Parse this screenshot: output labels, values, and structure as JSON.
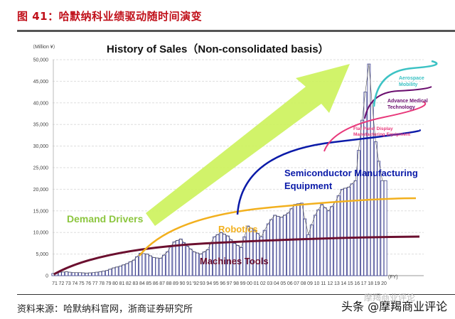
{
  "figure": {
    "title": "图 41：哈默纳科业绩驱动随时间演变",
    "source": "资料来源：哈默纳科官网，浙商证券研究所",
    "watermark": "头条 @摩羯商业评论",
    "watermark_faint": "摩羯商业评论"
  },
  "colors": {
    "title_red": "#c0101a",
    "bars": "#3b3f8f",
    "bar_fill": "#ffffff",
    "arrow": "#ccf25a",
    "demand_drivers": "#8cc63f",
    "machine_tools": "#6b0f2f",
    "robotics": "#f2b01e",
    "semiconductor": "#0a1aa8",
    "flat_panel": "#e8387a",
    "medical": "#6a0d6e",
    "aerospace": "#3cc2c4",
    "grid": "#dddddd"
  },
  "chart_data": {
    "type": "bar",
    "title": "History of Sales（Non-consolidated basis）",
    "unit_label": "（Million ¥）",
    "xlabel": "(FY)",
    "ylabel": "",
    "ylim": [
      0,
      50000
    ],
    "yticks": [
      0,
      5000,
      10000,
      15000,
      20000,
      25000,
      30000,
      35000,
      40000,
      45000,
      50000
    ],
    "ytick_labels": [
      "0",
      "5,000",
      "10,000",
      "15,000",
      "20,000",
      "25,000",
      "30,000",
      "35,000",
      "40,000",
      "45,000",
      "50,000"
    ],
    "grid": true,
    "categories": [
      "71",
      "72",
      "73",
      "74",
      "75",
      "76",
      "77",
      "78",
      "79",
      "80",
      "81",
      "82",
      "83",
      "84",
      "85",
      "86",
      "87",
      "88",
      "89",
      "90",
      "91",
      "'92",
      "93",
      "94",
      "95",
      "96",
      "97",
      "98",
      "99",
      "00",
      "01",
      "02",
      "03",
      "04",
      "05",
      "06",
      "07",
      "08",
      "09",
      "10",
      "11",
      "12",
      "13",
      "14",
      "15",
      "16",
      "17",
      "18",
      "19",
      "20"
    ],
    "values": [
      500,
      800,
      900,
      700,
      700,
      600,
      700,
      900,
      1200,
      1800,
      2200,
      2800,
      3600,
      5200,
      5000,
      4200,
      4000,
      5500,
      7800,
      8500,
      6800,
      5500,
      5000,
      6000,
      9000,
      10000,
      9200,
      7500,
      6500,
      11500,
      10500,
      9000,
      12000,
      14000,
      13500,
      14500,
      16500,
      16800,
      9500,
      14000,
      16500,
      15000,
      17000,
      20000,
      20500,
      22000,
      36000,
      49000,
      31000,
      22000
    ],
    "annotations": {
      "demand_drivers": "Demand Drivers",
      "machine_tools": "Machines Tools",
      "robotics": "Robotics",
      "semiconductor": "Semiconductor Manufacturing Equipment",
      "semiconductor_line1": "Semiconductor Manufacturing",
      "semiconductor_line2": "Equipment",
      "flat_panel_line1": "Flat Panel Display",
      "flat_panel_line2": "Manufacturing Equipment",
      "medical_line1": "Advance Medical",
      "medical_line2": "Technology",
      "aerospace_line1": "Aerospace",
      "aerospace_line2": "Mobility"
    }
  }
}
